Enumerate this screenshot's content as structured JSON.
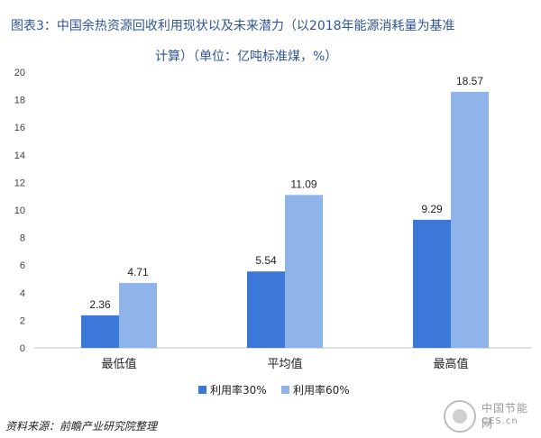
{
  "title_line1": "图表3：中国余热资源回收利用现状以及未来潜力（以2018年能源消耗量为基准",
  "title_line2": "计算）（单位：亿吨标准煤，%）",
  "footer": "资料来源：前瞻产业研究院整理",
  "watermark": {
    "cn": "中国节能网",
    "en": "CES.cn"
  },
  "colors": {
    "series1": "#3b78d8",
    "series2": "#8fb4ea",
    "axis": "#bfbfbf",
    "grid": "#d9d9d9",
    "tick": "#404040"
  },
  "chart_data": {
    "type": "bar",
    "categories": [
      "最低值",
      "平均值",
      "最高值"
    ],
    "series": [
      {
        "name": "利用率30%",
        "values": [
          2.36,
          5.54,
          9.29
        ]
      },
      {
        "name": "利用率60%",
        "values": [
          4.71,
          11.09,
          18.57
        ]
      }
    ],
    "ylim": [
      0,
      20
    ],
    "yticks": [
      0,
      2,
      4,
      6,
      8,
      10,
      12,
      14,
      16,
      18,
      20
    ],
    "grid": false,
    "legend": "bottom",
    "data_labels": true
  }
}
